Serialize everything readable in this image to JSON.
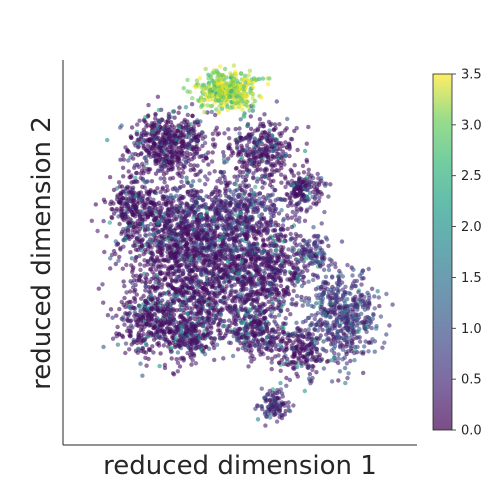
{
  "chart_data": {
    "type": "scatter",
    "title": "",
    "xlabel": "reduced dimension 1",
    "ylabel": "reduced dimension 2",
    "x_ticks_shown": false,
    "y_ticks_shown": false,
    "xlim": [
      -1.0,
      1.0
    ],
    "ylim": [
      -1.0,
      1.0
    ],
    "grid": false,
    "colormap": "viridis",
    "point_alpha": 0.6,
    "colorbar": {
      "min": 0.0,
      "max": 3.5,
      "ticks": [
        "0.0",
        "0.5",
        "1.0",
        "1.5",
        "2.0",
        "2.5",
        "3.0",
        "3.5"
      ],
      "tick_values": [
        0.0,
        0.5,
        1.0,
        1.5,
        2.0,
        2.5,
        3.0,
        3.5
      ],
      "placement": "right"
    },
    "clusters": [
      {
        "cx": -0.43,
        "cy": 0.6,
        "sx": 0.12,
        "sy": 0.09,
        "n": 550,
        "color_mean": 0.1
      },
      {
        "cx": 0.13,
        "cy": 0.58,
        "sx": 0.11,
        "sy": 0.08,
        "n": 320,
        "color_mean": 0.15
      },
      {
        "cx": -0.08,
        "cy": 0.9,
        "sx": 0.09,
        "sy": 0.055,
        "n": 380,
        "color_mean": 3.2
      },
      {
        "cx": 0.38,
        "cy": 0.35,
        "sx": 0.06,
        "sy": 0.05,
        "n": 160,
        "color_mean": 0.2
      },
      {
        "cx": -0.65,
        "cy": 0.25,
        "sx": 0.08,
        "sy": 0.09,
        "n": 260,
        "color_mean": 0.1
      },
      {
        "cx": -0.4,
        "cy": 0.12,
        "sx": 0.14,
        "sy": 0.12,
        "n": 520,
        "color_mean": 0.15
      },
      {
        "cx": -0.05,
        "cy": 0.2,
        "sx": 0.17,
        "sy": 0.13,
        "n": 700,
        "color_mean": 0.45
      },
      {
        "cx": -0.2,
        "cy": -0.15,
        "sx": 0.22,
        "sy": 0.16,
        "n": 1100,
        "color_mean": 0.15
      },
      {
        "cx": 0.18,
        "cy": -0.1,
        "sx": 0.12,
        "sy": 0.12,
        "n": 420,
        "color_mean": 0.2
      },
      {
        "cx": 0.62,
        "cy": -0.35,
        "sx": 0.11,
        "sy": 0.13,
        "n": 520,
        "color_mean": 1.0
      },
      {
        "cx": -0.55,
        "cy": -0.38,
        "sx": 0.1,
        "sy": 0.1,
        "n": 320,
        "color_mean": 0.1
      },
      {
        "cx": -0.3,
        "cy": -0.45,
        "sx": 0.1,
        "sy": 0.08,
        "n": 280,
        "color_mean": 0.15
      },
      {
        "cx": 0.1,
        "cy": -0.45,
        "sx": 0.1,
        "sy": 0.07,
        "n": 250,
        "color_mean": 0.2
      },
      {
        "cx": 0.35,
        "cy": -0.55,
        "sx": 0.08,
        "sy": 0.07,
        "n": 200,
        "color_mean": 0.15
      },
      {
        "cx": 0.2,
        "cy": -0.85,
        "sx": 0.05,
        "sy": 0.04,
        "n": 110,
        "color_mean": 0.6
      },
      {
        "cx": 0.45,
        "cy": 0.0,
        "sx": 0.05,
        "sy": 0.05,
        "n": 90,
        "color_mean": 0.8
      }
    ]
  }
}
